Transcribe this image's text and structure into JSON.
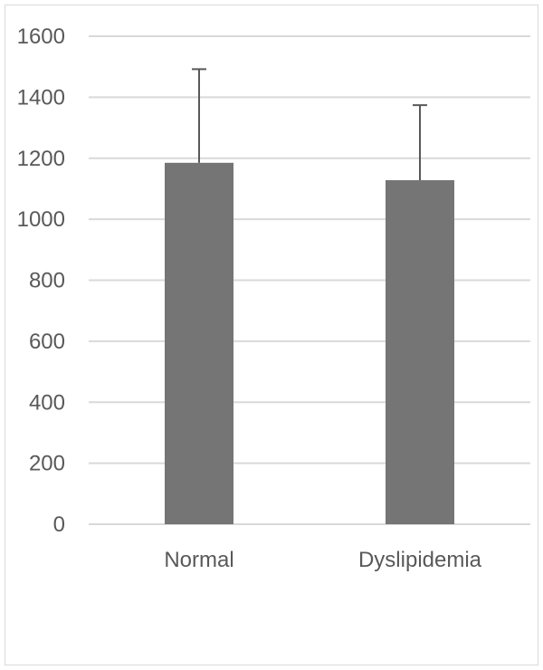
{
  "chart_data": {
    "type": "bar",
    "title": "",
    "xlabel": "",
    "ylabel": "",
    "categories": [
      "Normal",
      "Dyslipidemia"
    ],
    "values": [
      1185,
      1128
    ],
    "error_upper": [
      1492,
      1374
    ],
    "ylim": [
      0,
      1600
    ],
    "yticks": [
      "0",
      "200",
      "400",
      "600",
      "800",
      "1000",
      "1200",
      "1400",
      "1600"
    ],
    "grid": true,
    "legend": "none",
    "bar_color": "#757575",
    "error_color": "#595959",
    "grid_color": "#d9d9d9"
  }
}
